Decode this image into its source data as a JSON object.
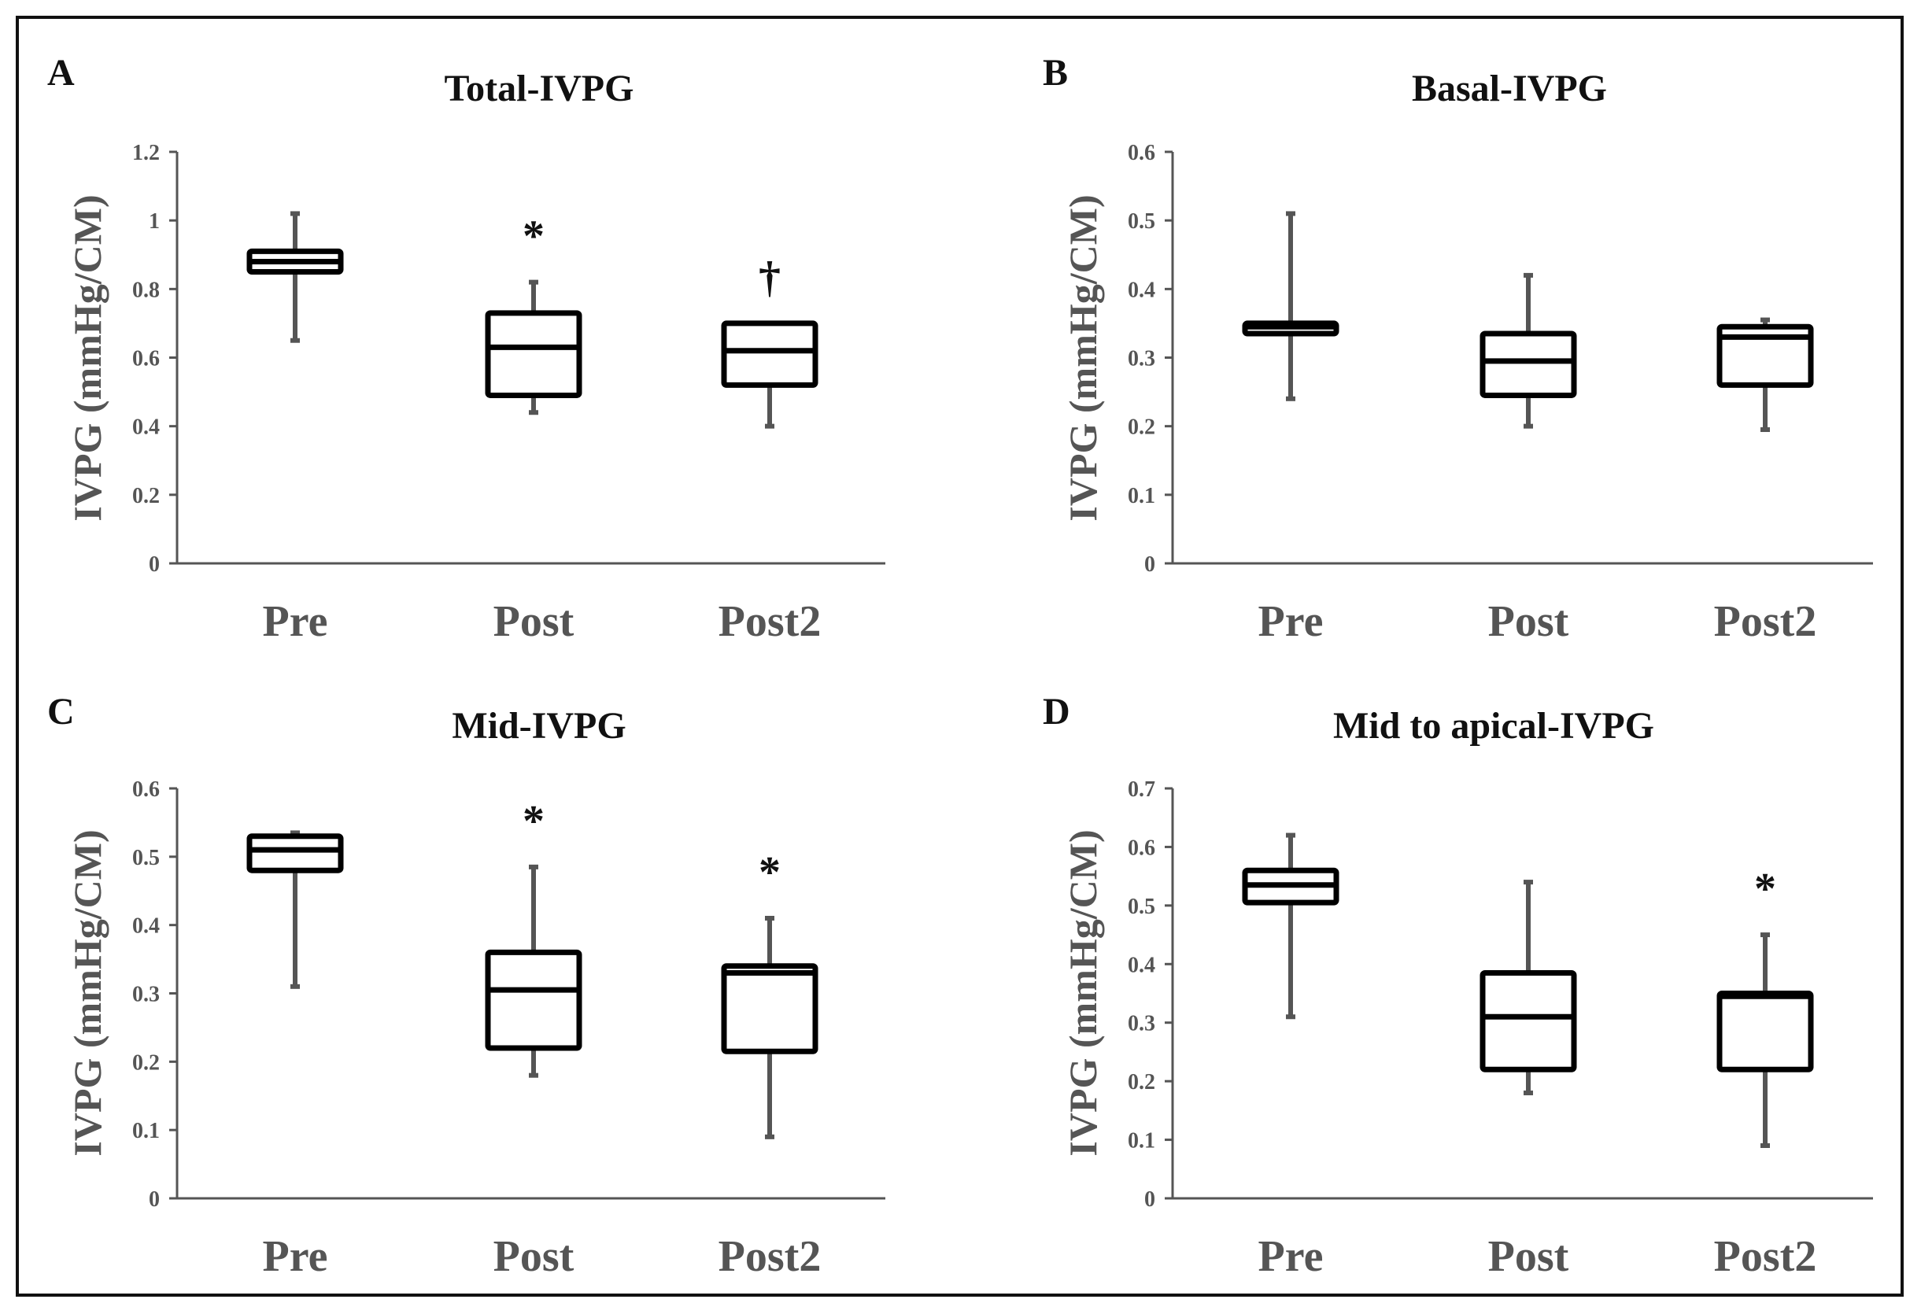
{
  "colors": {
    "box_stroke": "#000000",
    "whisker": "#555555",
    "axis": "#555555",
    "tick_text": "#555555",
    "title_text": "#111111"
  },
  "chart_data": [
    {
      "panel": "A",
      "type": "boxplot",
      "title": "Total-IVPG",
      "ylabel": "IVPG (mmHg/CM)",
      "xlabel": "",
      "ylim": [
        0,
        1.2
      ],
      "yticks": [
        "0",
        "0.2",
        "0.4",
        "0.6",
        "0.8",
        "1",
        "1.2"
      ],
      "ytick_values": [
        0,
        0.2,
        0.4,
        0.6,
        0.8,
        1.0,
        1.2
      ],
      "categories": [
        "Pre",
        "Post",
        "Post2"
      ],
      "boxes": [
        {
          "min": 0.65,
          "q1": 0.85,
          "median": 0.88,
          "q3": 0.91,
          "max": 1.02,
          "annotation": ""
        },
        {
          "min": 0.44,
          "q1": 0.49,
          "median": 0.63,
          "q3": 0.73,
          "max": 0.82,
          "annotation": "*"
        },
        {
          "min": 0.4,
          "q1": 0.52,
          "median": 0.62,
          "q3": 0.7,
          "max": 0.7,
          "annotation": "†"
        }
      ]
    },
    {
      "panel": "B",
      "type": "boxplot",
      "title": "Basal-IVPG",
      "ylabel": "IVPG (mmHg/CM)",
      "xlabel": "",
      "ylim": [
        0,
        0.6
      ],
      "yticks": [
        "0",
        "0.1",
        "0.2",
        "0.3",
        "0.4",
        "0.5",
        "0.6"
      ],
      "ytick_values": [
        0,
        0.1,
        0.2,
        0.3,
        0.4,
        0.5,
        0.6
      ],
      "categories": [
        "Pre",
        "Post",
        "Post2"
      ],
      "boxes": [
        {
          "min": 0.24,
          "q1": 0.335,
          "median": 0.345,
          "q3": 0.35,
          "max": 0.51,
          "annotation": ""
        },
        {
          "min": 0.2,
          "q1": 0.245,
          "median": 0.295,
          "q3": 0.335,
          "max": 0.42,
          "annotation": ""
        },
        {
          "min": 0.195,
          "q1": 0.26,
          "median": 0.33,
          "q3": 0.345,
          "max": 0.355,
          "annotation": ""
        }
      ]
    },
    {
      "panel": "C",
      "type": "boxplot",
      "title": "Mid-IVPG",
      "ylabel": "IVPG (mmHg/CM)",
      "xlabel": "",
      "ylim": [
        0,
        0.6
      ],
      "yticks": [
        "0",
        "0.1",
        "0.2",
        "0.3",
        "0.4",
        "0.5",
        "0.6"
      ],
      "ytick_values": [
        0,
        0.1,
        0.2,
        0.3,
        0.4,
        0.5,
        0.6
      ],
      "categories": [
        "Pre",
        "Post",
        "Post2"
      ],
      "boxes": [
        {
          "min": 0.31,
          "q1": 0.48,
          "median": 0.51,
          "q3": 0.53,
          "max": 0.535,
          "annotation": ""
        },
        {
          "min": 0.18,
          "q1": 0.22,
          "median": 0.305,
          "q3": 0.36,
          "max": 0.485,
          "annotation": "*"
        },
        {
          "min": 0.09,
          "q1": 0.215,
          "median": 0.33,
          "q3": 0.34,
          "max": 0.41,
          "annotation": "*"
        }
      ]
    },
    {
      "panel": "D",
      "type": "boxplot",
      "title": "Mid to apical-IVPG",
      "ylabel": "IVPG (mmHg/CM)",
      "xlabel": "",
      "ylim": [
        0,
        0.7
      ],
      "yticks": [
        "0",
        "0.1",
        "0.2",
        "0.3",
        "0.4",
        "0.5",
        "0.6",
        "0.7"
      ],
      "ytick_values": [
        0,
        0.1,
        0.2,
        0.3,
        0.4,
        0.5,
        0.6,
        0.7
      ],
      "categories": [
        "Pre",
        "Post",
        "Post2"
      ],
      "boxes": [
        {
          "min": 0.31,
          "q1": 0.505,
          "median": 0.535,
          "q3": 0.56,
          "max": 0.62,
          "annotation": ""
        },
        {
          "min": 0.18,
          "q1": 0.22,
          "median": 0.31,
          "q3": 0.385,
          "max": 0.54,
          "annotation": ""
        },
        {
          "min": 0.09,
          "q1": 0.22,
          "median": 0.345,
          "q3": 0.35,
          "max": 0.45,
          "annotation": "*"
        }
      ]
    }
  ]
}
